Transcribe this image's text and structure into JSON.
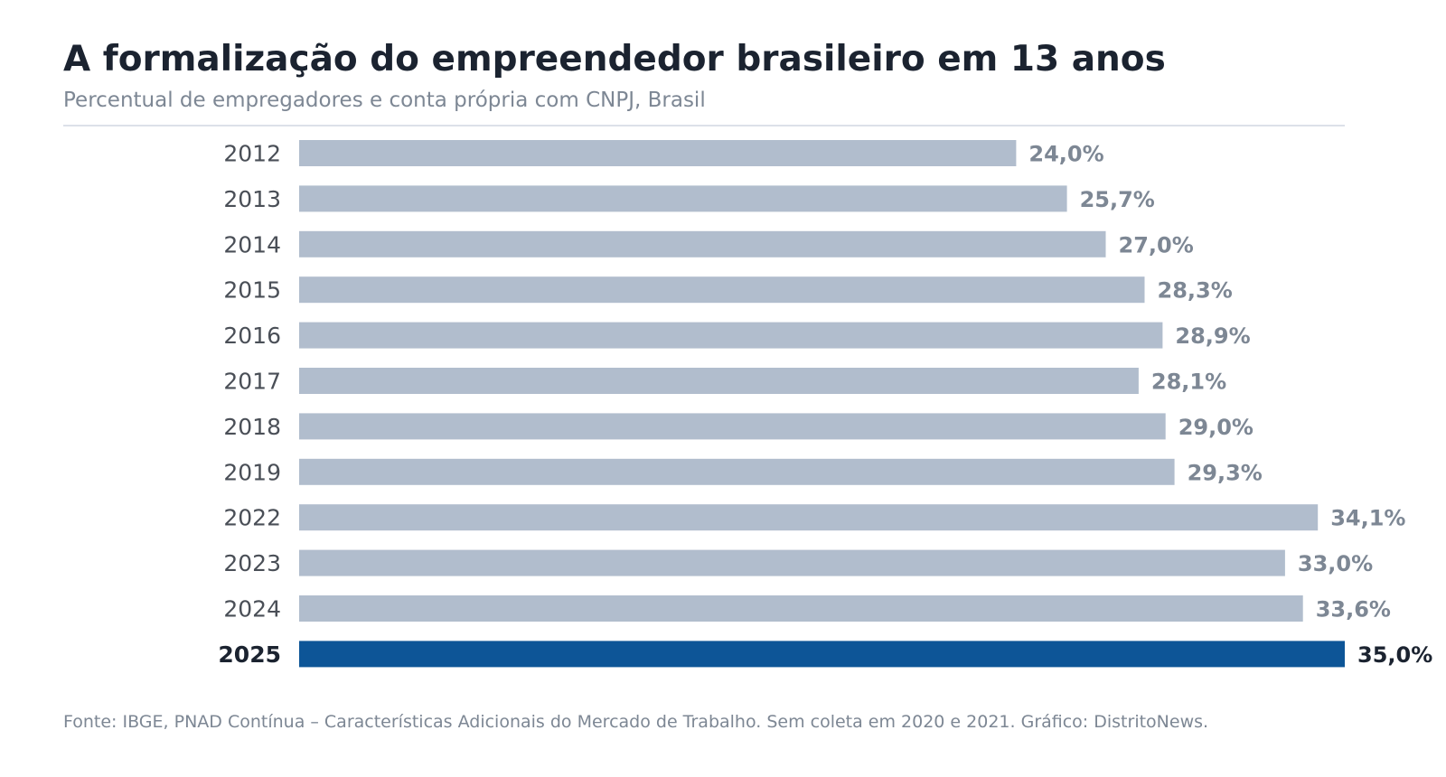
{
  "header": {
    "title": "A formalização do empreendedor brasileiro em 13 anos",
    "subtitle": "Percentual de empregadores e conta própria com CNPJ, Brasil"
  },
  "footer": {
    "source": "Fonte: IBGE, PNAD Contínua – Características Adicionais do Mercado de Trabalho. Sem coleta em 2020 e 2021. Gráfico: DistritoNews."
  },
  "colors": {
    "title": "#1b2330",
    "subtitle": "#7d8794",
    "source": "#7d8794",
    "bar": "#b1bdcd",
    "bar_highlight": "#0d5597",
    "label": "#7d8794",
    "label_highlight": "#1b2330",
    "category": "#4a4f57",
    "category_highlight": "#1b2330",
    "rule": "#dce1e9"
  },
  "chart_data": {
    "type": "bar",
    "orientation": "horizontal",
    "categories": [
      "2012",
      "2013",
      "2014",
      "2015",
      "2016",
      "2017",
      "2018",
      "2019",
      "2022",
      "2023",
      "2024",
      "2025"
    ],
    "values": [
      24.0,
      25.7,
      27.0,
      28.3,
      28.9,
      28.1,
      29.0,
      29.3,
      34.1,
      33.0,
      33.6,
      35.0
    ],
    "value_labels": [
      "24,0%",
      "25,7%",
      "27,0%",
      "28,3%",
      "28,9%",
      "28,1%",
      "29,0%",
      "29,3%",
      "34,1%",
      "33,0%",
      "33,6%",
      "35,0%"
    ],
    "highlight": "2025",
    "title": "A formalização do empreendedor brasileiro em 13 anos",
    "subtitle": "Percentual de empregadores e conta própria com CNPJ, Brasil",
    "xlim": [
      0,
      35
    ],
    "grid": false,
    "legend": "none"
  }
}
